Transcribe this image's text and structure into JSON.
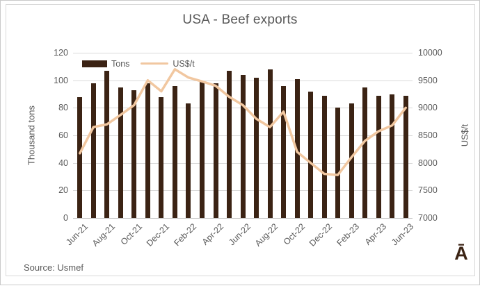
{
  "chart_data": {
    "type": "bar",
    "title": "USA - Beef exports",
    "categories": [
      "Jun-21",
      "Jul-21",
      "Aug-21",
      "Sep-21",
      "Oct-21",
      "Nov-21",
      "Dec-21",
      "Jan-22",
      "Feb-22",
      "Mar-22",
      "Apr-22",
      "May-22",
      "Jun-22",
      "Jul-22",
      "Aug-22",
      "Sep-22",
      "Oct-22",
      "Nov-22",
      "Dec-22",
      "Jan-23",
      "Feb-23",
      "Mar-23",
      "Apr-23",
      "May-23",
      "Jun-23"
    ],
    "x_tick_every": 2,
    "series": [
      {
        "name": "Tons",
        "type": "bar",
        "axis": "left",
        "values": [
          88,
          98,
          107,
          95,
          93,
          98,
          88,
          96,
          83,
          99,
          98,
          107,
          104,
          102,
          108,
          96,
          101,
          92,
          89,
          80,
          83,
          95,
          89,
          90,
          89
        ]
      },
      {
        "name": "US$/t",
        "type": "line",
        "axis": "right",
        "values": [
          8175,
          8650,
          8700,
          8870,
          9050,
          9500,
          9300,
          9700,
          9550,
          9480,
          9400,
          9200,
          9050,
          8800,
          8650,
          8930,
          8200,
          8000,
          7800,
          7780,
          8100,
          8400,
          8575,
          8680,
          9000
        ]
      }
    ],
    "ylabel_left": "Thousand tons",
    "ylabel_right": "US$/t",
    "ylim_left": [
      0,
      120
    ],
    "ytick_step_left": 20,
    "ylim_right": [
      7000,
      10000
    ],
    "ytick_step_right": 500,
    "grid": true,
    "legend_position": "inside-top-left"
  },
  "footer": {
    "source": "Source: Usmef",
    "watermark": "Ā"
  },
  "colors": {
    "bar": "#3B2314",
    "line": "#F1C7A0",
    "text": "#595959",
    "grid": "#D9D9D9",
    "axis": "#BFBFBF"
  }
}
